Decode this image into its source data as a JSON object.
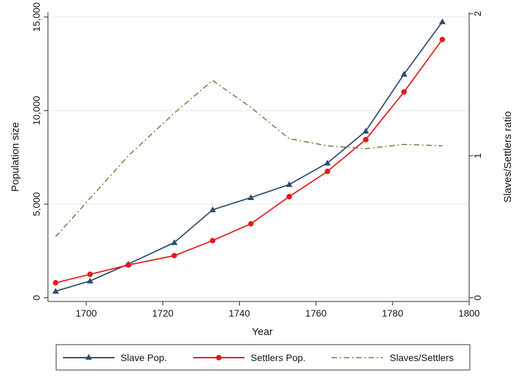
{
  "chart_data": {
    "type": "line",
    "xlabel": "Year",
    "ylabel": "Population size",
    "y2label": "Slaves/Settlers ratio",
    "xlim": [
      1690,
      1800
    ],
    "ylim": [
      -200,
      15250
    ],
    "y2lim": [
      -0.0259,
      2.0097
    ],
    "x_ticks": [
      1700,
      1720,
      1740,
      1760,
      1780,
      1800
    ],
    "y_ticks": [
      0,
      5000,
      10000,
      15000
    ],
    "y_tick_labels": [
      "0",
      "5,000",
      "10,000",
      "15,000"
    ],
    "y2_ticks": [
      0,
      1,
      2
    ],
    "grid": true,
    "legend_position": "bottom",
    "series": [
      {
        "name": "Slave Pop.",
        "axis": "left",
        "color": "#2f4b6e",
        "marker": "triangle",
        "dash": "solid",
        "x": [
          1692,
          1701,
          1711,
          1723,
          1733,
          1743,
          1753,
          1763,
          1773,
          1783,
          1793
        ],
        "values": [
          350,
          900,
          1800,
          2950,
          4700,
          5350,
          6050,
          7200,
          8900,
          11950,
          14750
        ]
      },
      {
        "name": "Settlers Pop.",
        "axis": "left",
        "color": "#e8171b",
        "marker": "circle",
        "dash": "solid",
        "x": [
          1692,
          1701,
          1711,
          1723,
          1733,
          1743,
          1753,
          1763,
          1773,
          1783,
          1793
        ],
        "values": [
          800,
          1250,
          1750,
          2250,
          3050,
          3950,
          5400,
          6750,
          8450,
          11000,
          13800
        ]
      },
      {
        "name": "Slaves/Settlers",
        "axis": "right",
        "color": "#6b7a3c",
        "marker": "none",
        "dash": "dashdot",
        "x": [
          1692,
          1701,
          1711,
          1723,
          1733,
          1743,
          1753,
          1763,
          1773,
          1783,
          1793
        ],
        "values": [
          0.43,
          0.7,
          1.0,
          1.3,
          1.53,
          1.34,
          1.12,
          1.07,
          1.05,
          1.08,
          1.07
        ]
      }
    ]
  }
}
